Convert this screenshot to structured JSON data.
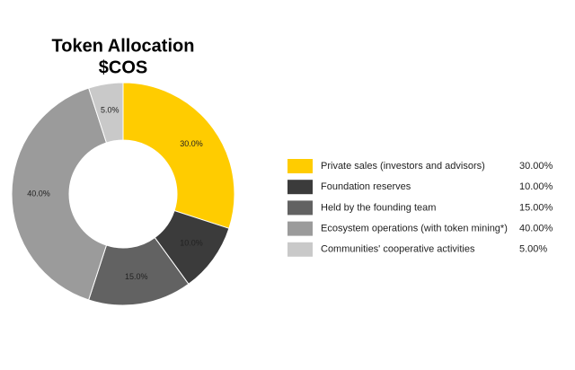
{
  "chart_data": {
    "type": "donut",
    "title": "Token Allocation",
    "subtitle": "$COS",
    "categories": [
      "Private sales (investors and advisors)",
      "Foundation reserves",
      "Held by the founding team",
      "Ecosystem operations (with token mining*)",
      "Communities' cooperative activities"
    ],
    "values": [
      30,
      10,
      15,
      40,
      5
    ],
    "value_labels": [
      "30.0%",
      "10.0%",
      "15.0%",
      "40.0%",
      "5.0%"
    ],
    "legend_value_labels": [
      "30.00%",
      "10.00%",
      "15.00%",
      "40.00%",
      "5.00%"
    ],
    "colors": [
      "#ffcc00",
      "#3b3b3b",
      "#626262",
      "#9b9b9b",
      "#c9c9c9"
    ],
    "legend": "right"
  }
}
